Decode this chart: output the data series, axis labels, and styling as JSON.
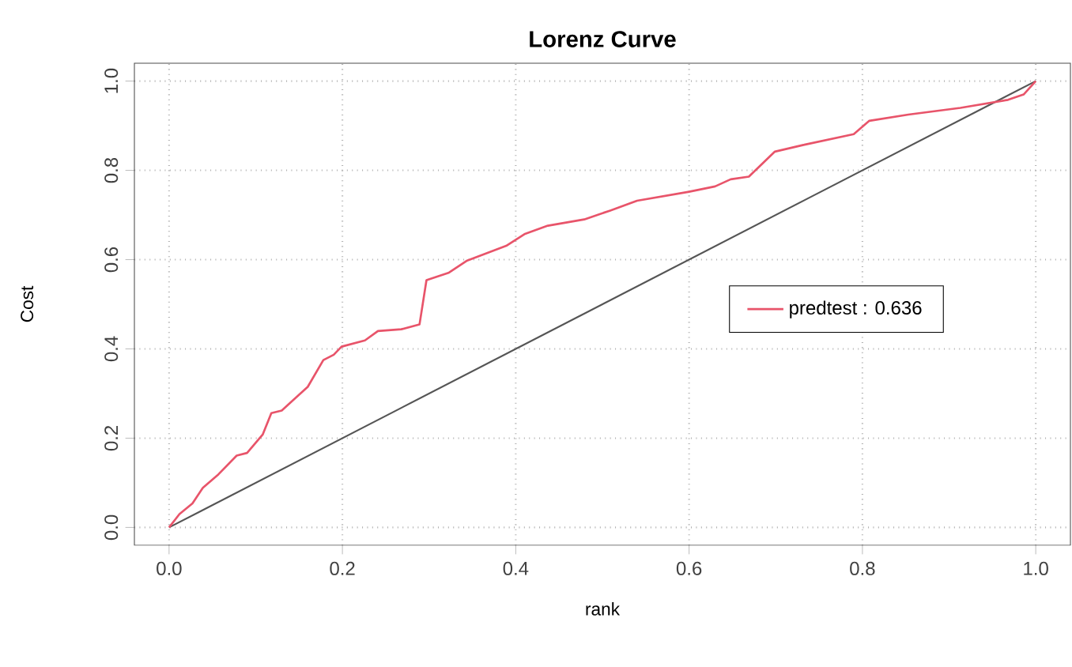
{
  "chart_data": {
    "type": "line",
    "title": "Lorenz Curve",
    "xlabel": "rank",
    "ylabel": "Cost",
    "xlim": [
      -0.04,
      1.04
    ],
    "ylim": [
      -0.04,
      1.04
    ],
    "xticks": [
      {
        "value": 0,
        "label": "0.0"
      },
      0.2,
      0.4,
      0.6,
      0.8,
      {
        "value": 1,
        "label": "1.0"
      }
    ],
    "yticks": [
      {
        "value": 0,
        "label": "0.0"
      },
      0.2,
      0.4,
      0.6,
      0.8,
      {
        "value": 1,
        "label": "1.0"
      }
    ],
    "grid": true,
    "legend": "right",
    "series": [
      {
        "name": "predtest : 0.636",
        "color": "#e8546a",
        "x": [
          0,
          0.012,
          0.027,
          0.039,
          0.057,
          0.078,
          0.09,
          0.108,
          0.118,
          0.13,
          0.16,
          0.178,
          0.19,
          0.199,
          0.226,
          0.241,
          0.268,
          0.289,
          0.297,
          0.323,
          0.344,
          0.389,
          0.41,
          0.437,
          0.479,
          0.509,
          0.54,
          0.6,
          0.63,
          0.648,
          0.669,
          0.699,
          0.732,
          0.79,
          0.808,
          0.853,
          0.913,
          0.968,
          0.986,
          1.0
        ],
        "values": [
          0,
          0.03,
          0.054,
          0.089,
          0.119,
          0.161,
          0.167,
          0.208,
          0.256,
          0.262,
          0.315,
          0.375,
          0.387,
          0.405,
          0.419,
          0.44,
          0.444,
          0.455,
          0.554,
          0.571,
          0.598,
          0.631,
          0.657,
          0.676,
          0.69,
          0.71,
          0.732,
          0.752,
          0.764,
          0.78,
          0.786,
          0.842,
          0.857,
          0.881,
          0.911,
          0.925,
          0.94,
          0.958,
          0.97,
          1.0
        ]
      },
      {
        "color": "#555555",
        "x": [
          0,
          1
        ],
        "values": [
          0,
          1
        ]
      }
    ]
  }
}
